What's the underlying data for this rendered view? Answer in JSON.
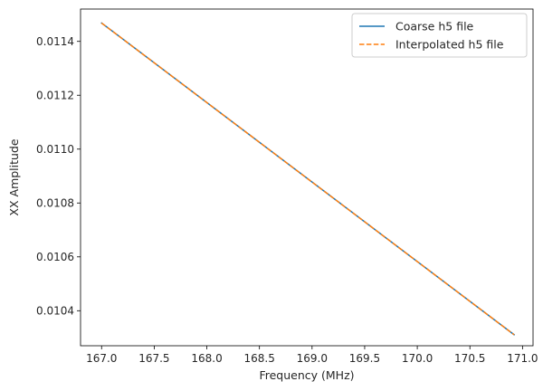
{
  "chart_data": {
    "type": "line",
    "title": "",
    "xlabel": "Frequency (MHz)",
    "ylabel": "XX Amplitude",
    "xlim": [
      166.8,
      171.1
    ],
    "ylim": [
      0.01027,
      0.01152
    ],
    "xticks": [
      167.0,
      167.5,
      168.0,
      168.5,
      169.0,
      169.5,
      170.0,
      170.5,
      171.0
    ],
    "xtick_labels": [
      "167.0",
      "167.5",
      "168.0",
      "168.5",
      "169.0",
      "169.5",
      "170.0",
      "170.5",
      "171.0"
    ],
    "yticks": [
      0.0104,
      0.0106,
      0.0108,
      0.011,
      0.0112,
      0.0114
    ],
    "ytick_labels": [
      "0.0104",
      "0.0106",
      "0.0108",
      "0.0110",
      "0.0112",
      "0.0114"
    ],
    "grid": false,
    "legend_position": "top-right",
    "series": [
      {
        "name": "Coarse h5 file",
        "color": "#1f77b4",
        "dash": "solid",
        "x": [
          167.0,
          170.92
        ],
        "y": [
          0.011468,
          0.010311
        ]
      },
      {
        "name": "Interpolated h5 file",
        "color": "#ff7f0e",
        "dash": "dashed",
        "x": [
          167.0,
          170.92
        ],
        "y": [
          0.011468,
          0.010311
        ]
      }
    ]
  }
}
